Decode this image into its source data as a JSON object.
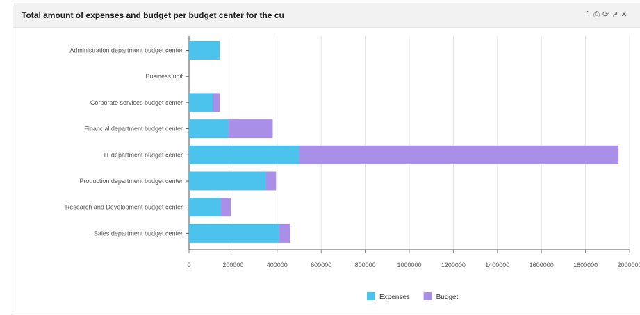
{
  "panel": {
    "title": "Total amount of expenses and budget per budget center for the cu",
    "icons": [
      "collapse-icon",
      "print-icon",
      "refresh-icon",
      "popout-icon",
      "close-icon"
    ]
  },
  "chart_data": {
    "type": "bar",
    "orientation": "horizontal",
    "stacked": true,
    "categories": [
      "Administration department budget center",
      "Business unit",
      "Corporate services budget center",
      "Financial department budget center",
      "IT department budget center",
      "Production department budget center",
      "Research and Development budget center",
      "Sales department budget center"
    ],
    "series": [
      {
        "name": "Expenses",
        "color": "#4cc3ec",
        "values": [
          140000,
          0,
          110000,
          180000,
          500000,
          350000,
          145000,
          410000
        ]
      },
      {
        "name": "Budget",
        "color": "#a98fe8",
        "values": [
          0,
          0,
          30000,
          200000,
          1450000,
          45000,
          45000,
          50000
        ]
      }
    ],
    "xlim": [
      0,
      2000000
    ],
    "xticks": [
      0,
      200000,
      400000,
      600000,
      800000,
      1000000,
      1200000,
      1400000,
      1600000,
      1800000,
      2000000
    ],
    "grid": "vertical",
    "legend": "bottom-center"
  }
}
